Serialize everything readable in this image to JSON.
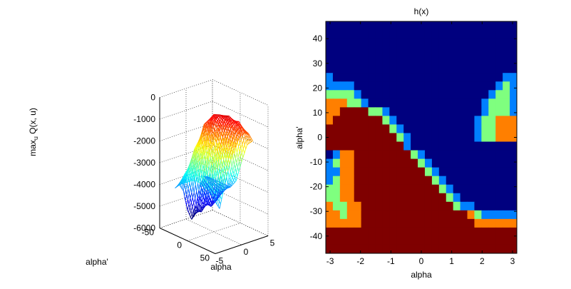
{
  "chart_data": [
    {
      "type": "surface",
      "zlabel_parts": [
        "max",
        "u",
        " Q(x, u)"
      ],
      "xlabel": "alpha",
      "ylabel": "alpha'",
      "xlim": [
        -5,
        5
      ],
      "ylim": [
        -50,
        50
      ],
      "zlim": [
        -6000,
        0
      ],
      "x_ticks": [
        -5,
        0,
        5
      ],
      "y_ticks": [
        -50,
        0,
        50
      ],
      "z_ticks": [
        0,
        -1000,
        -2000,
        -3000,
        -4000,
        -5000,
        -6000
      ],
      "grid": true,
      "colormap": "jet",
      "surface_grid": {
        "x": [
          -3.14,
          -2.36,
          -1.57,
          -0.79,
          0,
          0.79,
          1.57,
          2.36,
          3.14
        ],
        "y": [
          -40,
          -30,
          -20,
          -10,
          0,
          10,
          20,
          30,
          40
        ],
        "z": [
          [
            -4200,
            -4100,
            -4450,
            -5400,
            -5900,
            -5400,
            -4450,
            -4100,
            -4200
          ],
          [
            -3900,
            -3500,
            -3300,
            -4200,
            -5400,
            -5500,
            -4800,
            -4300,
            -4200
          ],
          [
            -3700,
            -3100,
            -2300,
            -2600,
            -3900,
            -5000,
            -5200,
            -4500,
            -4200
          ],
          [
            -3500,
            -2800,
            -1700,
            -1100,
            -1900,
            -3500,
            -4800,
            -4600,
            -4200
          ],
          [
            -3400,
            -2400,
            -1400,
            -750,
            -600,
            -1500,
            -3200,
            -4200,
            -4200
          ],
          [
            -3500,
            -2300,
            -1300,
            -700,
            -500,
            -600,
            -1600,
            -3100,
            -3800
          ],
          [
            -3600,
            -2500,
            -1500,
            -900,
            -600,
            -500,
            -800,
            -1800,
            -2800
          ],
          [
            -3900,
            -2900,
            -2000,
            -1300,
            -900,
            -700,
            -700,
            -1100,
            -1900
          ],
          [
            -4200,
            -3400,
            -2600,
            -2000,
            -1500,
            -1200,
            -1100,
            -1200,
            -1600
          ]
        ]
      }
    },
    {
      "type": "heatmap",
      "title": "h(x)",
      "xlabel": "alpha",
      "ylabel": "alpha'",
      "xlim": [
        -3.14159,
        3.14159
      ],
      "ylim": [
        -47,
        47
      ],
      "x_ticks": [
        -3,
        -2,
        -1,
        0,
        1,
        2,
        3
      ],
      "y_ticks": [
        40,
        30,
        20,
        10,
        0,
        -10,
        -20,
        -30,
        -40
      ],
      "color_levels": [
        "#00007f",
        "#0080ff",
        "#7fff7f",
        "#ff7f00",
        "#7f0000"
      ],
      "grid_cols": 27,
      "grid_rows": 27,
      "cells": [
        "000000000000000000000000000",
        "000000000000000000000000000",
        "000000000000000000000000000",
        "000000000000000000000000000",
        "000000000000000000000000000",
        "000000000000000000000000000",
        "100000000000000000000000011",
        "111100000000000000000000121",
        "222210000000000000000001221",
        "333221000000000000000012221",
        "334444221000000000000012221",
        "344444442100000000000122333",
        "444444444210000000000122333",
        "444444444421000000000122333",
        "444444444441000000000000000",
        "013344444444210000000000000",
        "123344444444421000000000000",
        "113344444444442100000000000",
        "123344444444444210000000000",
        "223344444444444421000000000",
        "223344444444444442100000000",
        "322334444444444444211000000",
        "332334444444444444443211111",
        "333334444444444444444333333",
        "444444444444444444444444444",
        "444444444444444444444444444",
        "444444444444444444444444444"
      ]
    }
  ]
}
